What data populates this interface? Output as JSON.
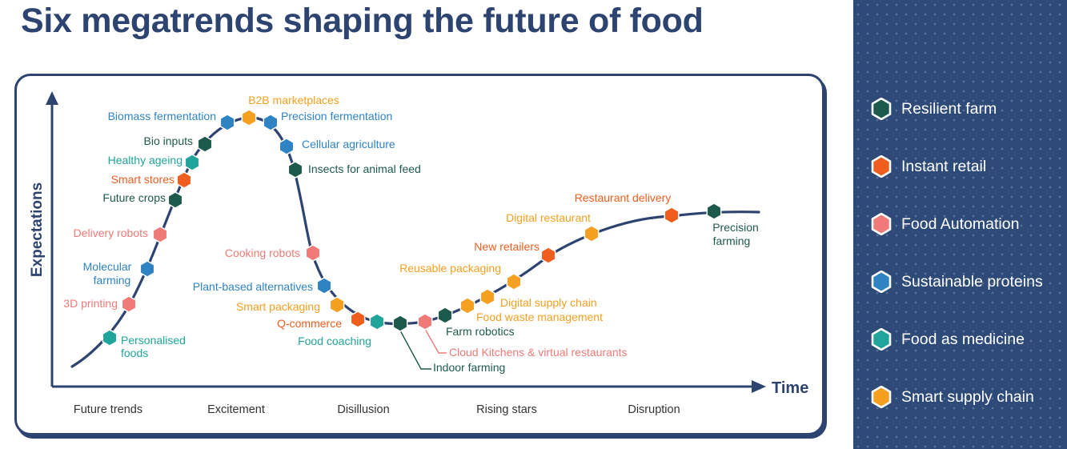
{
  "title": "Six megatrends shaping the future of food",
  "legend": [
    {
      "label": "Resilient farm",
      "color": "#1d5a4c"
    },
    {
      "label": "Instant retail",
      "color": "#ef5e1e"
    },
    {
      "label": "Food Automation",
      "color": "#f07a78"
    },
    {
      "label": "Sustainable proteins",
      "color": "#2f83c3"
    },
    {
      "label": "Food as medicine",
      "color": "#21a49a"
    },
    {
      "label": "Smart supply chain",
      "color": "#f4a021"
    }
  ],
  "chart_data": {
    "type": "diagram",
    "ylabel": "Expectations",
    "xlabel": "Time",
    "phases": [
      "Future trends",
      "Excitement",
      "Disillusion",
      "Rising stars",
      "Disruption"
    ],
    "items": [
      {
        "label": "Personalised foods",
        "trend": "Food as medicine"
      },
      {
        "label": "3D printing",
        "trend": "Food Automation"
      },
      {
        "label": "Molecular farming",
        "trend": "Sustainable proteins"
      },
      {
        "label": "Delivery robots",
        "trend": "Food Automation"
      },
      {
        "label": "Future crops",
        "trend": "Resilient farm"
      },
      {
        "label": "Smart stores",
        "trend": "Instant retail"
      },
      {
        "label": "Healthy ageing",
        "trend": "Food as medicine"
      },
      {
        "label": "Bio inputs",
        "trend": "Resilient farm"
      },
      {
        "label": "Biomass fermentation",
        "trend": "Sustainable proteins"
      },
      {
        "label": "B2B marketplaces",
        "trend": "Smart supply chain"
      },
      {
        "label": "Precision fermentation",
        "trend": "Sustainable proteins"
      },
      {
        "label": "Cellular agriculture",
        "trend": "Sustainable proteins"
      },
      {
        "label": "Insects for animal feed",
        "trend": "Resilient farm"
      },
      {
        "label": "Cooking robots",
        "trend": "Food Automation"
      },
      {
        "label": "Plant-based alternatives",
        "trend": "Sustainable proteins"
      },
      {
        "label": "Smart packaging",
        "trend": "Smart supply chain"
      },
      {
        "label": "Q-commerce",
        "trend": "Instant retail"
      },
      {
        "label": "Food coaching",
        "trend": "Food as medicine"
      },
      {
        "label": "Indoor farming",
        "trend": "Resilient farm"
      },
      {
        "label": "Cloud Kitchens & virtual restaurants",
        "trend": "Food Automation"
      },
      {
        "label": "Farm robotics",
        "trend": "Resilient farm"
      },
      {
        "label": "Food waste management",
        "trend": "Smart supply chain"
      },
      {
        "label": "Digital supply chain",
        "trend": "Smart supply chain"
      },
      {
        "label": "Reusable packaging",
        "trend": "Smart supply chain"
      },
      {
        "label": "New retailers",
        "trend": "Instant retail"
      },
      {
        "label": "Digital restaurant",
        "trend": "Smart supply chain"
      },
      {
        "label": "Restaurant delivery",
        "trend": "Instant retail"
      },
      {
        "label": "Precision farming",
        "trend": "Resilient farm"
      }
    ]
  }
}
